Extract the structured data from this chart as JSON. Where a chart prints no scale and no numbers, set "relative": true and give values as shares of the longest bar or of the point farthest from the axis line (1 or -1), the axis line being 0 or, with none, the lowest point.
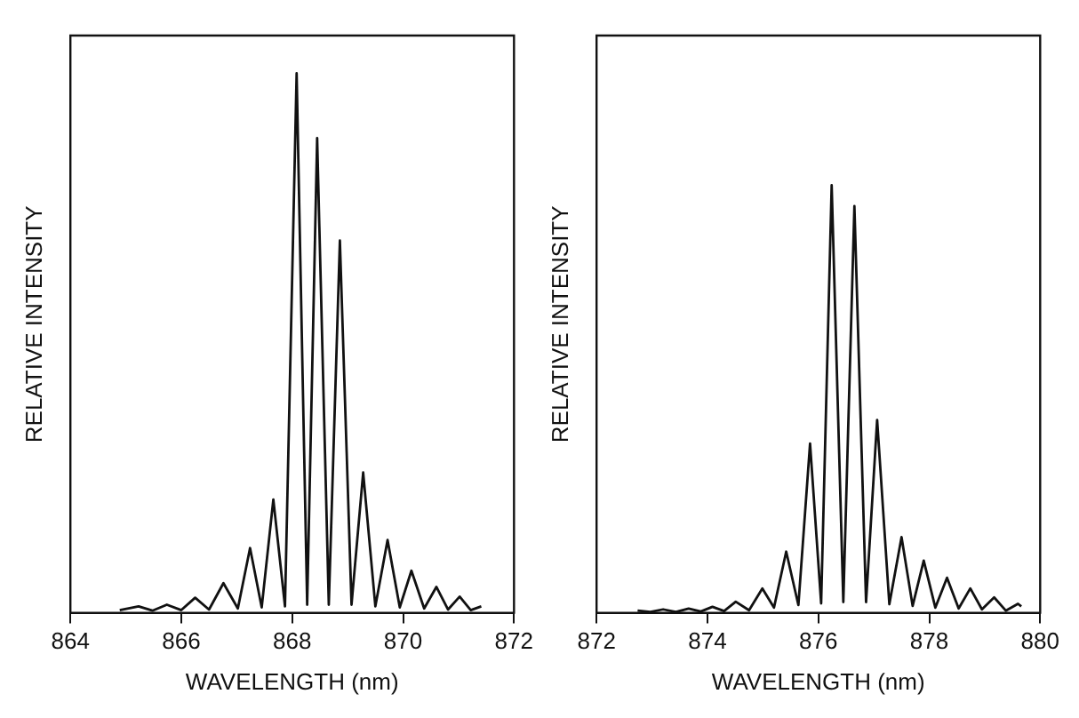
{
  "chart_data": [
    {
      "type": "line",
      "relative": true,
      "xlabel": "WAVELENGTH (nm)",
      "ylabel": "RELATIVE INTENSITY",
      "xlim": [
        864,
        872
      ],
      "xticks": [
        864,
        866,
        868,
        870,
        872
      ],
      "marker": "none",
      "legend": false,
      "grid": false,
      "series": [
        {
          "color": "#111111",
          "x": [
            864.89,
            865.23,
            865.48,
            865.74,
            866.0,
            866.25,
            866.5,
            866.76,
            867.02,
            867.24,
            867.45,
            867.66,
            867.87,
            868.08,
            868.27,
            868.45,
            868.66,
            868.86,
            869.07,
            869.28,
            869.5,
            869.72,
            869.94,
            870.15,
            870.38,
            870.6,
            870.81,
            871.02,
            871.22,
            871.41
          ],
          "values": [
            0.005,
            0.012,
            0.004,
            0.015,
            0.005,
            0.028,
            0.006,
            0.055,
            0.008,
            0.12,
            0.01,
            0.21,
            0.012,
            1.0,
            0.015,
            0.88,
            0.015,
            0.69,
            0.015,
            0.26,
            0.012,
            0.135,
            0.01,
            0.078,
            0.008,
            0.048,
            0.006,
            0.03,
            0.005,
            0.012
          ]
        }
      ]
    },
    {
      "type": "line",
      "relative": true,
      "xlabel": "WAVELENGTH (nm)",
      "ylabel": "RELATIVE INTENSITY",
      "xlim": [
        872,
        880
      ],
      "xticks": [
        872,
        874,
        876,
        878,
        880
      ],
      "marker": "none",
      "legend": false,
      "grid": false,
      "series": [
        {
          "color": "#111111",
          "x": [
            872.74,
            872.97,
            873.2,
            873.43,
            873.66,
            873.88,
            874.09,
            874.3,
            874.51,
            874.75,
            874.99,
            875.2,
            875.42,
            875.64,
            875.85,
            876.05,
            876.24,
            876.45,
            876.65,
            876.86,
            877.06,
            877.28,
            877.5,
            877.7,
            877.9,
            878.11,
            878.32,
            878.53,
            878.74,
            878.95,
            879.17,
            879.38,
            879.6,
            879.66
          ],
          "values": [
            0.005,
            0.002,
            0.008,
            0.002,
            0.01,
            0.003,
            0.014,
            0.004,
            0.026,
            0.006,
            0.057,
            0.012,
            0.143,
            0.018,
            0.396,
            0.022,
            1.0,
            0.025,
            0.951,
            0.025,
            0.451,
            0.02,
            0.177,
            0.016,
            0.122,
            0.012,
            0.082,
            0.01,
            0.057,
            0.008,
            0.036,
            0.005,
            0.021,
            0.015
          ]
        }
      ]
    }
  ]
}
